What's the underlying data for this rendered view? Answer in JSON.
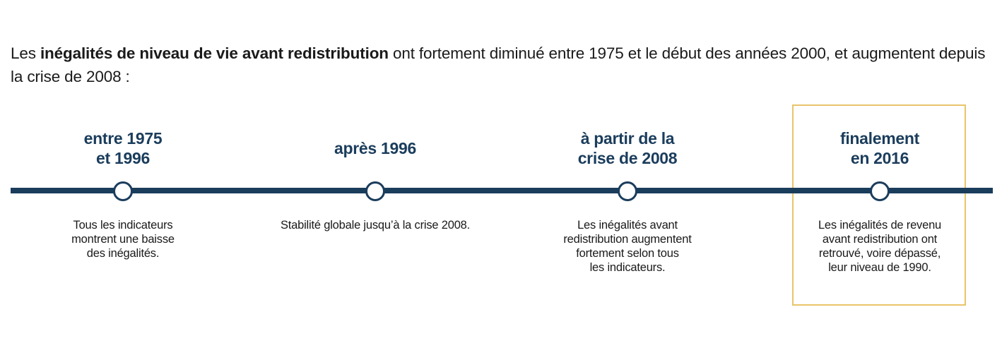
{
  "intro": {
    "before": "Les ",
    "bold": "inégalités de niveau de vie avant redistribution",
    "after": " ont fortement diminué entre 1975 et le début des années 2000, et augmentent depuis la crise de 2008 :"
  },
  "timeline": {
    "line_color": "#1b3d5c",
    "highlight_color": "#e9c46a",
    "milestones": [
      {
        "title": "entre 1975\net 1996",
        "description": "Tous les indicateurs\nmontrent une baisse\ndes inégalités."
      },
      {
        "title": "après 1996",
        "description": "Stabilité globale jusqu’à la crise 2008."
      },
      {
        "title": "à partir de la\ncrise de 2008",
        "description": "Les inégalités avant\nredistribution augmentent\nfortement selon tous\nles indicateurs."
      },
      {
        "title": "finalement\nen 2016",
        "description": "Les inégalités de revenu\navant redistribution ont\nretrouvé, voire dépassé,\nleur niveau de 1990.",
        "highlighted": true
      }
    ]
  }
}
